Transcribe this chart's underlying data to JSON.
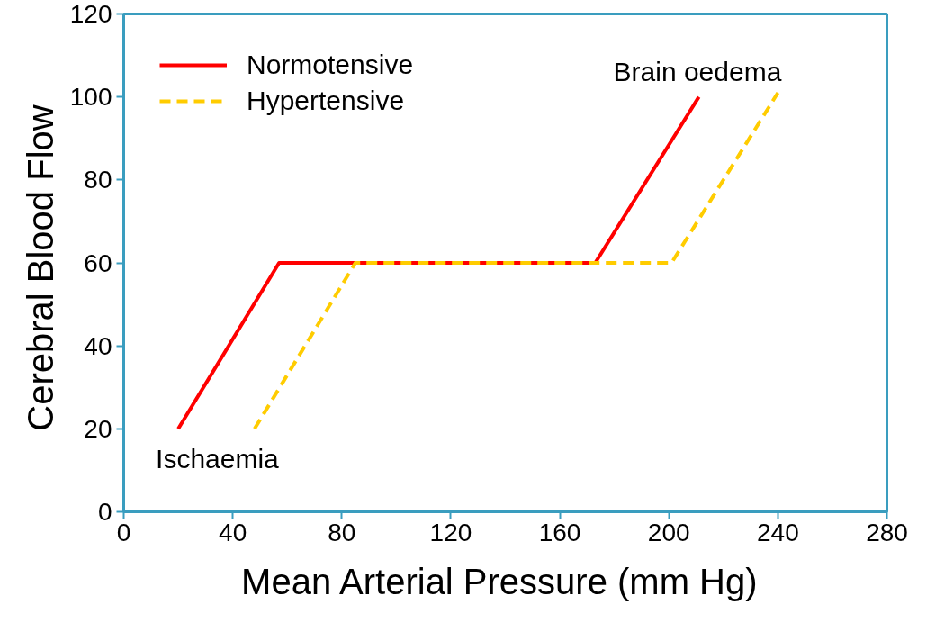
{
  "chart_data": {
    "type": "line",
    "xlabel": "Mean Arterial Pressure  (mm Hg)",
    "ylabel": "Cerebral  Blood Flow",
    "xlim": [
      0,
      280
    ],
    "xticks": [
      0,
      40,
      80,
      120,
      160,
      200,
      240,
      280
    ],
    "ylim": [
      0,
      120
    ],
    "yticks": [
      0,
      20,
      40,
      60,
      80,
      100,
      120
    ],
    "grid": false,
    "legend": "top left",
    "marker": "none",
    "series": [
      {
        "name": "Normotensive",
        "color": "#ff0000",
        "line_style": "solid",
        "x": [
          20,
          57,
          173,
          211
        ],
        "values": [
          20,
          60,
          60,
          100
        ]
      },
      {
        "name": "Hypertensive",
        "color": "#ffcc00",
        "line_style": "dashed",
        "x": [
          48,
          85,
          201,
          240
        ],
        "values": [
          20,
          60,
          60,
          101
        ]
      }
    ],
    "annotations": [
      {
        "text": "Ischaemia",
        "x": 20,
        "y": 20
      },
      {
        "text": "Brain oedema",
        "x": 211,
        "y": 100
      }
    ]
  }
}
